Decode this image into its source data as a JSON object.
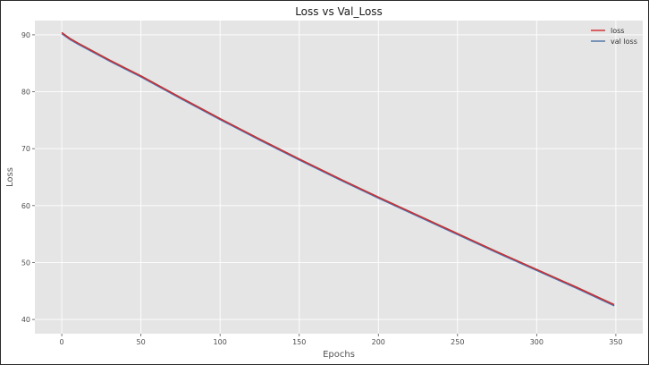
{
  "chart_data": {
    "type": "line",
    "title": "Loss vs Val_Loss",
    "xlabel": "Epochs",
    "ylabel": "Loss",
    "xlim": [
      -17,
      367
    ],
    "ylim": [
      37.5,
      92.5
    ],
    "xticks": [
      0,
      50,
      100,
      150,
      200,
      250,
      300,
      350
    ],
    "yticks": [
      40,
      50,
      60,
      70,
      80,
      90
    ],
    "grid": true,
    "legend_position": "top-right",
    "series": [
      {
        "name": "loss",
        "color": "#d62728",
        "x": [
          0,
          5,
          10,
          20,
          30,
          40,
          50,
          75,
          100,
          125,
          150,
          175,
          200,
          225,
          250,
          275,
          300,
          325,
          349
        ],
        "y": [
          90.4,
          89.4,
          88.6,
          87.1,
          85.6,
          84.2,
          82.8,
          79.0,
          75.3,
          71.7,
          68.2,
          64.8,
          61.5,
          58.3,
          55.1,
          51.9,
          48.8,
          45.7,
          42.6
        ]
      },
      {
        "name": "val loss",
        "color": "#4a6fa5",
        "x": [
          0,
          5,
          10,
          20,
          30,
          40,
          50,
          75,
          100,
          125,
          150,
          175,
          200,
          225,
          250,
          275,
          300,
          325,
          349
        ],
        "y": [
          90.2,
          89.2,
          88.4,
          86.9,
          85.4,
          84.0,
          82.6,
          78.8,
          75.1,
          71.5,
          68.0,
          64.6,
          61.3,
          58.1,
          54.9,
          51.7,
          48.6,
          45.5,
          42.4
        ]
      }
    ]
  }
}
